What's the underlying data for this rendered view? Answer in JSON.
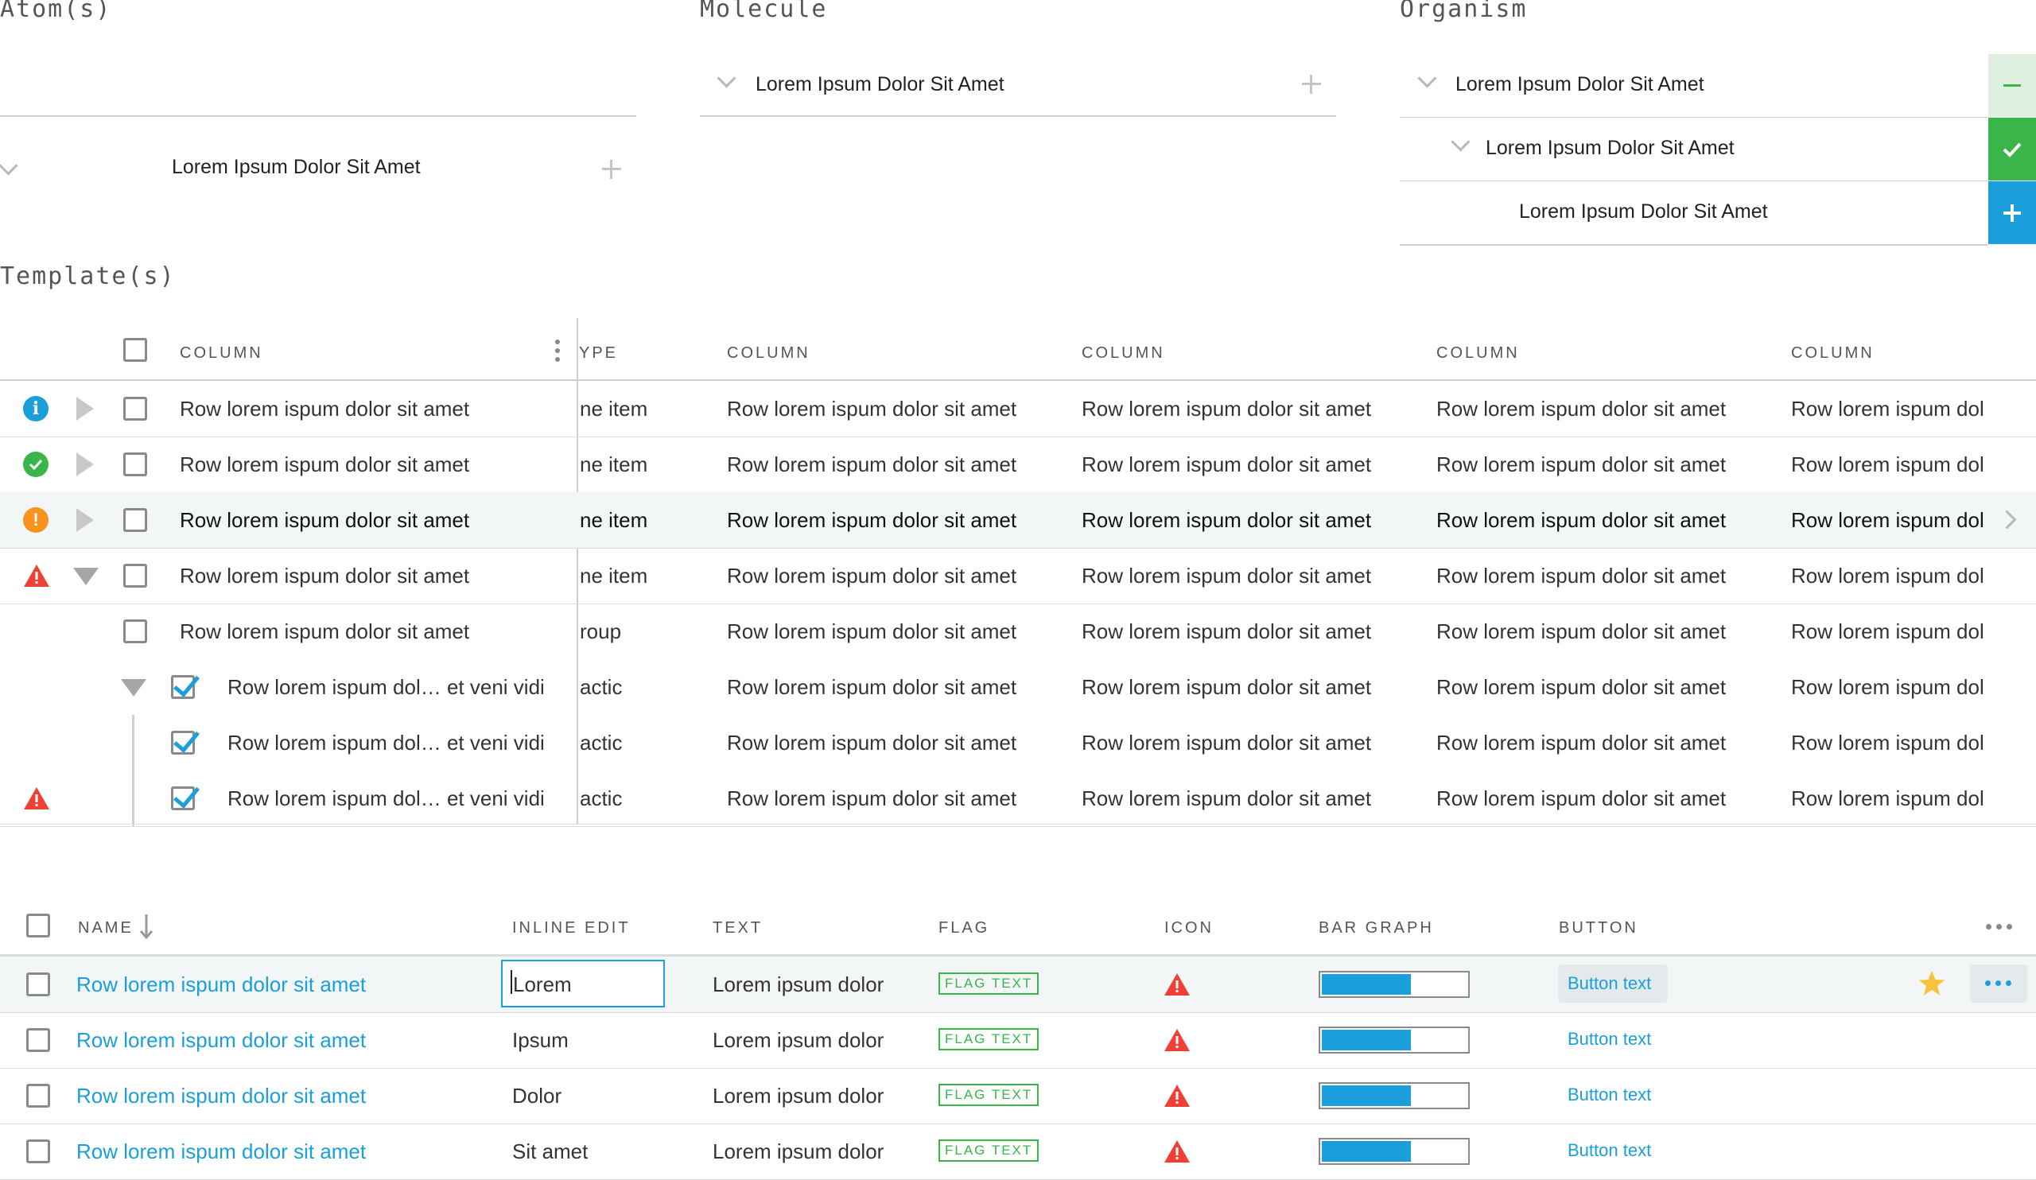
{
  "sections": {
    "atoms": "Atom(s)",
    "molecule": "Molecule",
    "organism": "Organism",
    "templates": "Template(s)"
  },
  "atoms": {
    "item_label": "Lorem Ipsum Dolor Sit Amet"
  },
  "molecule": {
    "item_label": "Lorem Ipsum Dolor Sit Amet"
  },
  "organism": {
    "rows": [
      {
        "label": "Lorem Ipsum Dolor Sit Amet",
        "action": "minus-icon",
        "action_color": "#dff0e0"
      },
      {
        "label": "Lorem Ipsum Dolor Sit Amet",
        "action": "check-icon",
        "action_color": "#39b54a"
      },
      {
        "label": "Lorem Ipsum Dolor Sit Amet",
        "action": "plus-icon",
        "action_color": "#1a9fdb"
      }
    ]
  },
  "grid1": {
    "headers": [
      "COLUMN",
      "YPE",
      "COLUMN",
      "COLUMN",
      "COLUMN",
      "COLUMN"
    ],
    "rows": [
      {
        "status": "info",
        "expander": "right",
        "checked": false,
        "name": "Row lorem ispum dolor sit amet",
        "type": "ne item",
        "cols": [
          "Row lorem ispum dolor sit amet",
          "Row lorem ispum dolor sit amet",
          "Row lorem ispum dolor sit amet",
          "Row lorem ispum dol"
        ]
      },
      {
        "status": "success",
        "expander": "right",
        "checked": false,
        "name": "Row lorem ispum dolor sit amet",
        "type": "ne item",
        "cols": [
          "Row lorem ispum dolor sit amet",
          "Row lorem ispum dolor sit amet",
          "Row lorem ispum dolor sit amet",
          "Row lorem ispum dol"
        ]
      },
      {
        "status": "warning",
        "expander": "right",
        "checked": false,
        "name": "Row lorem ispum dolor sit amet",
        "type": "ne item",
        "cols": [
          "Row lorem ispum dolor sit amet",
          "Row lorem ispum dolor sit amet",
          "Row lorem ispum dolor sit amet",
          "Row lorem ispum dol"
        ]
      },
      {
        "status": "error",
        "expander": "down",
        "checked": false,
        "name": "Row lorem ispum dolor sit amet",
        "type": "ne item",
        "cols": [
          "Row lorem ispum dolor sit amet",
          "Row lorem ispum dolor sit amet",
          "Row lorem ispum dolor sit amet",
          "Row lorem ispum dol"
        ]
      },
      {
        "status": "",
        "expander": "",
        "checked": false,
        "name": "Row lorem ispum dolor sit amet",
        "type": "roup",
        "cols": [
          "Row lorem ispum dolor sit amet",
          "Row lorem ispum dolor sit amet",
          "Row lorem ispum dolor sit amet",
          "Row lorem ispum dol"
        ]
      },
      {
        "status": "",
        "expander": "down",
        "checked": true,
        "name": "Row lorem ispum dol… et veni vidi",
        "type": "actic",
        "cols": [
          "Row lorem ispum dolor sit amet",
          "Row lorem ispum dolor sit amet",
          "Row lorem ispum dolor sit amet",
          "Row lorem ispum dol"
        ]
      },
      {
        "status": "",
        "expander": "",
        "checked": true,
        "name": "Row lorem ispum dol… et veni vidi",
        "type": "actic",
        "cols": [
          "Row lorem ispum dolor sit amet",
          "Row lorem ispum dolor sit amet",
          "Row lorem ispum dolor sit amet",
          "Row lorem ispum dol"
        ]
      },
      {
        "status": "error",
        "expander": "",
        "checked": true,
        "name": "Row lorem ispum dol… et veni vidi",
        "type": "actic",
        "cols": [
          "Row lorem ispum dolor sit amet",
          "Row lorem ispum dolor sit amet",
          "Row lorem ispum dolor sit amet",
          "Row lorem ispum dol"
        ]
      }
    ]
  },
  "grid2": {
    "headers": {
      "name": "NAME",
      "inline_edit": "INLINE EDIT",
      "text": "TEXT",
      "flag": "FLAG",
      "icon": "ICON",
      "bar_graph": "BAR GRAPH",
      "button": "BUTTON"
    },
    "rows": [
      {
        "name": "Row lorem ispum dolor sit amet",
        "inline": "Lorem",
        "text": "Lorem ipsum dolor",
        "flag": "FLAG TEXT",
        "bar": 0.6,
        "button": "Button text"
      },
      {
        "name": "Row lorem ispum dolor sit amet",
        "inline": "Ipsum",
        "text": "Lorem ipsum dolor",
        "flag": "FLAG TEXT",
        "bar": 0.6,
        "button": "Button text"
      },
      {
        "name": "Row lorem ispum dolor sit amet",
        "inline": "Dolor",
        "text": "Lorem ipsum dolor",
        "flag": "FLAG TEXT",
        "bar": 0.6,
        "button": "Button text"
      },
      {
        "name": "Row lorem ispum dolor sit amet",
        "inline": "Sit amet",
        "text": "Lorem ipsum dolor",
        "flag": "FLAG TEXT",
        "bar": 0.6,
        "button": "Button text"
      }
    ]
  },
  "colors": {
    "accent": "#1a9fdb",
    "success": "#39b54a",
    "warning": "#f7941d",
    "error": "#ee4036",
    "star": "#f9c23c"
  }
}
